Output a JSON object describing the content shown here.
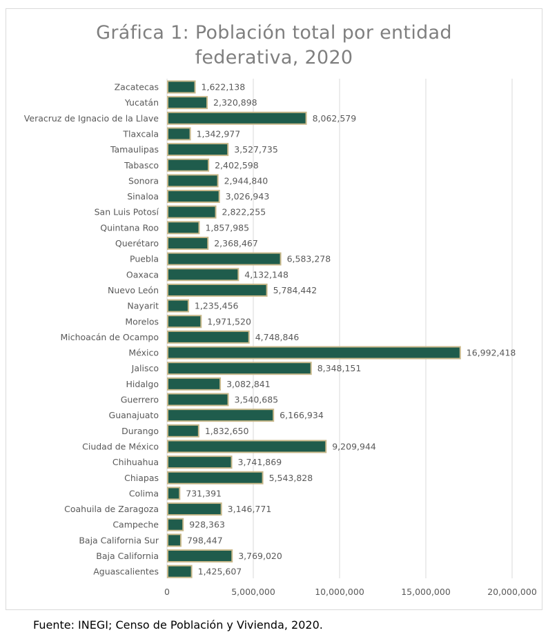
{
  "chart_data": {
    "type": "bar",
    "orientation": "horizontal",
    "title": "Gráfica 1: Población total por entidad federativa, 2020",
    "title_lines": [
      "Gráfica 1: Población total por entidad",
      "federativa, 2020"
    ],
    "categories": [
      "Zacatecas",
      "Yucatán",
      "Veracruz de Ignacio de la Llave",
      "Tlaxcala",
      "Tamaulipas",
      "Tabasco",
      "Sonora",
      "Sinaloa",
      "San Luis Potosí",
      "Quintana Roo",
      "Querétaro",
      "Puebla",
      "Oaxaca",
      "Nuevo León",
      "Nayarit",
      "Morelos",
      "Michoacán de Ocampo",
      "México",
      "Jalisco",
      "Hidalgo",
      "Guerrero",
      "Guanajuato",
      "Durango",
      "Ciudad de México",
      "Chihuahua",
      "Chiapas",
      "Colima",
      "Coahuila de Zaragoza",
      "Campeche",
      "Baja California Sur",
      "Baja California",
      "Aguascalientes"
    ],
    "values": [
      1622138,
      2320898,
      8062579,
      1342977,
      3527735,
      2402598,
      2944840,
      3026943,
      2822255,
      1857985,
      2368467,
      6583278,
      4132148,
      5784442,
      1235456,
      1971520,
      4748846,
      16992418,
      8348151,
      3082841,
      3540685,
      6166934,
      1832650,
      9209944,
      3741869,
      5543828,
      731391,
      3146771,
      928363,
      798447,
      3769020,
      1425607
    ],
    "value_labels": [
      "1,622,138",
      "2,320,898",
      "8,062,579",
      "1,342,977",
      "3,527,735",
      "2,402,598",
      "2,944,840",
      "3,026,943",
      "2,822,255",
      "1,857,985",
      "2,368,467",
      "6,583,278",
      "4,132,148",
      "5,784,442",
      "1,235,456",
      "1,971,520",
      "4,748,846",
      "16,992,418",
      "8,348,151",
      "3,082,841",
      "3,540,685",
      "6,166,934",
      "1,832,650",
      "9,209,944",
      "3,741,869",
      "5,543,828",
      "731,391",
      "3,146,771",
      "928,363",
      "798,447",
      "3,769,020",
      "1,425,607"
    ],
    "xlim": [
      0,
      20000000
    ],
    "x_ticks": [
      0,
      5000000,
      10000000,
      15000000,
      20000000
    ],
    "x_tick_labels": [
      "0",
      "5,000,000",
      "10,000,000",
      "15,000,000",
      "20,000,000"
    ],
    "grid": true,
    "legend": "none",
    "colors": {
      "bar_fill": "#1f5c4c",
      "bar_border": "#c8b88a",
      "grid": "#d9d9d9",
      "title": "#7f7f7f",
      "label": "#595959"
    }
  },
  "source_note": "Fuente: INEGI; Censo de Población y Vivienda, 2020."
}
